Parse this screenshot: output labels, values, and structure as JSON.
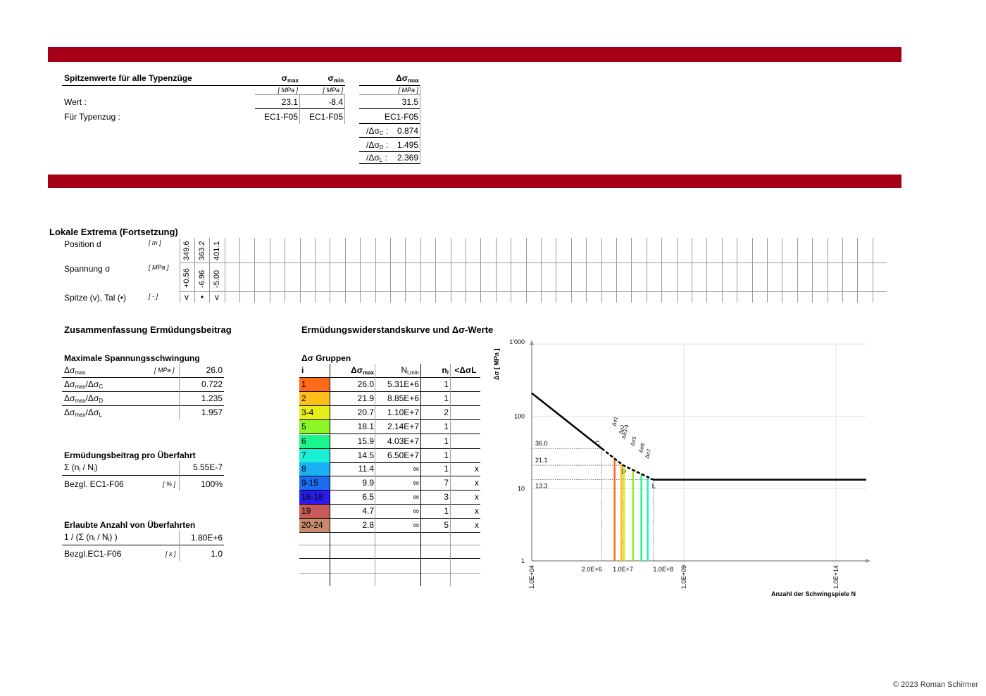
{
  "peaks": {
    "title": "Spitzenwerte für alle Typenzüge",
    "h_smax": "σ",
    "h_smax_sub": "max",
    "h_smin": "σ",
    "h_smin_sub": "min",
    "h_dsmax": "Δσ",
    "h_dsmax_sub": "max",
    "unit": "[ MPa ]",
    "row_wert": "Wert :",
    "row_typ": "Für Typenzug :",
    "smax": "23.1",
    "smin": "-8.4",
    "dsmax": "31.5",
    "typ_smax": "EC1-F05",
    "typ_smin": "EC1-F05",
    "typ_ds": "EC1-F05",
    "rc_lab": "/Δσ",
    "rc_sub": "C",
    "rc_val": "0.874",
    "rd_lab": "/Δσ",
    "rd_sub": "D",
    "rd_val": "1.495",
    "rl_lab": "/Δσ",
    "rl_sub": "L",
    "rl_val": "2.369"
  },
  "extrema": {
    "title": "Lokale Extrema (Fortsetzung)",
    "pos_label": "Position d",
    "pos_unit": "[ m ]",
    "sp_label": "Spannung σ",
    "sp_unit": "[ MPa ]",
    "pk_label": "Spitze (v), Tal (•)",
    "pk_unit": "[ - ]",
    "positions": [
      "349.6",
      "363.2",
      "401.1"
    ],
    "stresses": [
      "+0.56",
      "-6.96",
      "-5.00"
    ],
    "peaks": [
      "v",
      "•",
      "v"
    ]
  },
  "summary": {
    "title": "Zusammenfassung Ermüdungsbeitrag",
    "max_title": "Maximale Spannungsschwingung",
    "r1_lab": "Δσ",
    "r1_sub": "max",
    "r1_unit": "[ MPa ]",
    "r1_val": "26.0",
    "r2_lab": "Δσ",
    "r2_sub": "max",
    "r2_lab2": "/Δσ",
    "r2_sub2": "C",
    "r2_val": "0.722",
    "r3_lab": "Δσ",
    "r3_sub": "max",
    "r3_lab2": "/Δσ",
    "r3_sub2": "D",
    "r3_val": "1.235",
    "r4_lab": "Δσ",
    "r4_sub": "max",
    "r4_lab2": "/Δσ",
    "r4_sub2": "L",
    "r4_val": "1.957",
    "beitrag_title": "Ermüdungsbeitrag pro Überfahrt",
    "sum_lab": "Σ (n",
    "sum_sub1": "i",
    "sum_mid": " / N",
    "sum_sub2": "i",
    "sum_end": ")",
    "sum_val": "5.55E-7",
    "bez1_lab": "Bezgl. EC1-F06",
    "bez1_unit": "[ % ]",
    "bez1_val": "100%",
    "erl_title": "Erlaubte Anzahl von Überfahrten",
    "inv_lab": "1 / (Σ (n",
    "inv_sub1": "i",
    "inv_mid": " / N",
    "inv_sub2": "i",
    "inv_end": ") )",
    "inv_val": "1.80E+6",
    "bez2_lab": "Bezgl.EC1-F06",
    "bez2_unit": "[ x ]",
    "bez2_val": "1.0"
  },
  "groups": {
    "title": "Ermüdungswiderstandskurve und Δσ-Werte",
    "sub": "Δσ Gruppen",
    "h_i": "i",
    "h_ds": "Δσ",
    "h_ds_sub": "max",
    "h_n": "N",
    "h_n_sub": "i,min",
    "h_ni": "n",
    "h_ni_sub": "i",
    "h_lt": "<ΔσL",
    "rows": [
      {
        "i": "1",
        "ds": "26.0",
        "N": "5.31E+6",
        "n": "1",
        "lt": "",
        "color": "#ff6a1a"
      },
      {
        "i": "2",
        "ds": "21.9",
        "N": "8.85E+6",
        "n": "1",
        "lt": "",
        "color": "#ffbf1a"
      },
      {
        "i": "3-4",
        "ds": "20.7",
        "N": "1.10E+7",
        "n": "2",
        "lt": "",
        "color": "#e6ef1a"
      },
      {
        "i": "5",
        "ds": "18.1",
        "N": "2.14E+7",
        "n": "1",
        "lt": "",
        "color": "#8cf526"
      },
      {
        "i": "6",
        "ds": "15.9",
        "N": "4.03E+7",
        "n": "1",
        "lt": "",
        "color": "#1af58c"
      },
      {
        "i": "7",
        "ds": "14.5",
        "N": "6.50E+7",
        "n": "1",
        "lt": "",
        "color": "#1af0d6"
      },
      {
        "i": "8",
        "ds": "11.4",
        "N": "∞",
        "n": "1",
        "lt": "x",
        "color": "#1ab0f5"
      },
      {
        "i": "9-15",
        "ds": "9.9",
        "N": "∞",
        "n": "7",
        "lt": "x",
        "color": "#1a6cf0"
      },
      {
        "i": "16-18",
        "ds": "6.5",
        "N": "∞",
        "n": "3",
        "lt": "x",
        "color": "#2a1af0"
      },
      {
        "i": "19",
        "ds": "4.7",
        "N": "∞",
        "n": "1",
        "lt": "x",
        "color": "#c85a5a"
      },
      {
        "i": "20-24",
        "ds": "2.8",
        "N": "∞",
        "n": "5",
        "lt": "x",
        "color": "#c88a6a"
      }
    ]
  },
  "chart_data": {
    "type": "line",
    "ylabel": "Δσ [ MPa ]",
    "xlabel": "Anzahl der Schwingspiele N",
    "x_scale": "log",
    "y_scale": "log",
    "xlim": [
      10000,
      1000000000000000.0
    ],
    "ylim": [
      1,
      1000
    ],
    "y_ticks": [
      "1'000",
      "100",
      "10",
      "1"
    ],
    "x_ticks": [
      "1.0E+04",
      "2.0E+6",
      "1.0E+7",
      "1.0E+8",
      "1.0E+09",
      "1.0E+14"
    ],
    "curve": [
      [
        10000,
        210
      ],
      [
        2000000,
        36.0
      ],
      [
        10000000,
        21.1
      ],
      [
        100000000,
        13.3
      ],
      [
        1000000000000000.0,
        13.3
      ]
    ],
    "ref_values": [
      {
        "label": "C",
        "y": 36.0,
        "x": 2000000
      },
      {
        "label": "D",
        "y": 21.1,
        "x": 10000000
      },
      {
        "label": "L",
        "y": 13.3,
        "x": 100000000
      }
    ],
    "ref_labels": [
      "36.0",
      "21.1",
      "13.3"
    ],
    "group_labels": [
      "Δσ1",
      "Δσ2",
      "Δσ3-4",
      "Δσ5",
      "Δσ6",
      "Δσ7"
    ],
    "group_lines": [
      {
        "x": 5310000,
        "y": 26.0,
        "color": "#ff6a1a"
      },
      {
        "x": 8850000,
        "y": 21.9,
        "color": "#ffbf1a"
      },
      {
        "x": 11000000,
        "y": 20.7,
        "color": "#e6ef1a"
      },
      {
        "x": 21400000,
        "y": 18.1,
        "color": "#8cf526"
      },
      {
        "x": 40300000,
        "y": 15.9,
        "color": "#1af58c"
      },
      {
        "x": 65000000,
        "y": 14.5,
        "color": "#1af0d6"
      }
    ]
  },
  "footer": "© 2023 Roman Schirmer"
}
